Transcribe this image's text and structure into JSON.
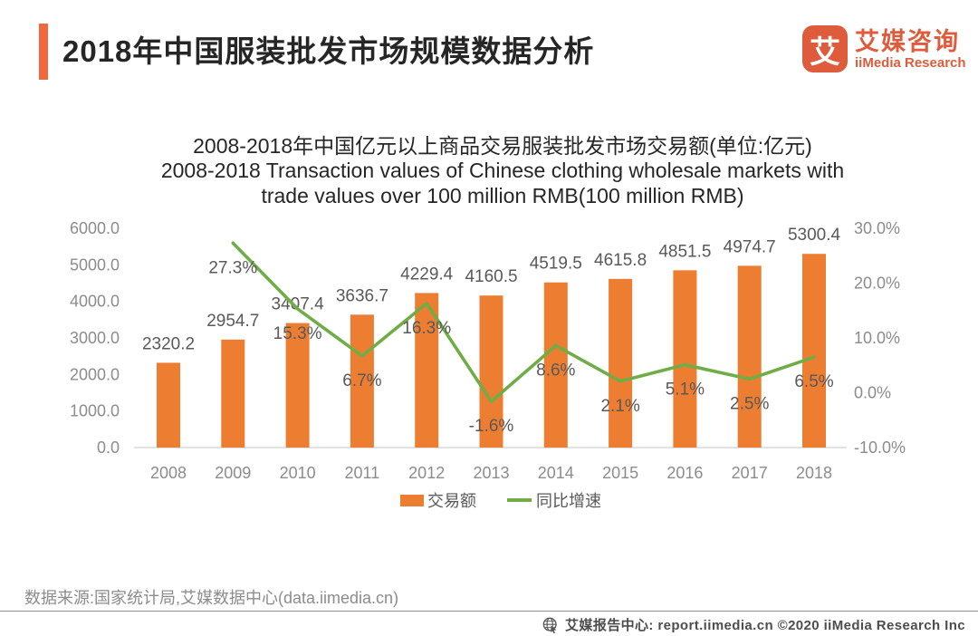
{
  "header": {
    "title": "2018年中国服装批发市场规模数据分析",
    "accent_color": "#F2683C"
  },
  "logo": {
    "icon_char": "艾",
    "cn": "艾媒咨询",
    "en": "iiMedia Research",
    "color": "#DE5B3C"
  },
  "chart_data": {
    "type": "bar+line",
    "title_cn": "2008-2018年中国亿元以上商品交易服装批发市场交易额(单位:亿元)",
    "title_en_lines": [
      "2008-2018 Transaction values of Chinese clothing wholesale markets with",
      "trade values over 100 million RMB(100 million RMB)"
    ],
    "categories": [
      "2008",
      "2009",
      "2010",
      "2011",
      "2012",
      "2013",
      "2014",
      "2015",
      "2016",
      "2017",
      "2018"
    ],
    "series": [
      {
        "name": "交易额",
        "type": "bar",
        "axis": "left",
        "color": "#ED7D31",
        "values": [
          2320.2,
          2954.7,
          3407.4,
          3636.7,
          4229.4,
          4160.5,
          4519.5,
          4615.8,
          4851.5,
          4974.7,
          5300.4
        ]
      },
      {
        "name": "同比增速",
        "type": "line",
        "axis": "right",
        "color": "#70AD47",
        "unit": "%",
        "values": [
          null,
          27.3,
          15.3,
          6.7,
          16.3,
          -1.6,
          8.6,
          2.1,
          5.1,
          2.5,
          6.5
        ]
      }
    ],
    "left_axis": {
      "min": 0,
      "max": 6000,
      "step": 1000,
      "ticks": [
        "0.0",
        "1000.0",
        "2000.0",
        "3000.0",
        "4000.0",
        "5000.0",
        "6000.0"
      ]
    },
    "right_axis": {
      "min": -10,
      "max": 30,
      "step": 10,
      "ticks": [
        "-10.0%",
        "0.0%",
        "10.0%",
        "20.0%",
        "30.0%"
      ]
    },
    "legend": [
      "交易额",
      "同比增速"
    ],
    "label_color": "#595959",
    "axis_color": "#8C8C8C",
    "baseline_color": "#D9D9D9"
  },
  "footer": {
    "source": "数据来源:国家统计局,艾媒数据中心(data.iimedia.cn)"
  },
  "bottom_bar": {
    "text": "艾媒报告中心: report.iimedia.cn ©2020  iiMedia Research Inc"
  }
}
